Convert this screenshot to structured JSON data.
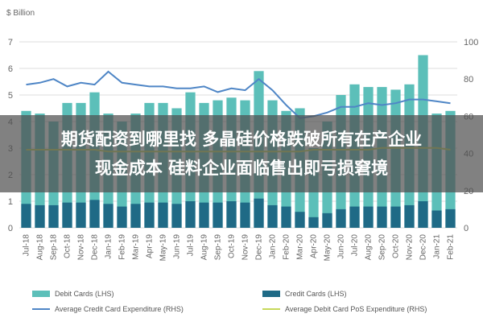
{
  "banner": {
    "line1": "期货配资到哪里找 多晶硅价格跌破所有在产企业",
    "line2": "现金成本 硅料企业面临售出即亏损窘境"
  },
  "colors": {
    "debit": "#5cbfb9",
    "credit": "#1f6a86",
    "avg_credit": "#4f86c6",
    "avg_debit": "#c7d85a",
    "grid": "#dddddd",
    "axis_text": "#666666"
  },
  "chart_data": {
    "type": "bar",
    "y_unit_label": "$ Billion",
    "ylim_left": [
      0,
      7
    ],
    "yticks_left": [
      0,
      1,
      2,
      3,
      4,
      5,
      6,
      7
    ],
    "ylim_right": [
      0,
      100
    ],
    "yticks_right": [
      0,
      20,
      40,
      60,
      80,
      100
    ],
    "grid": true,
    "legend_position": "bottom",
    "categories": [
      "Jul-18",
      "Aug-18",
      "Sep-18",
      "Oct-18",
      "Nov-18",
      "Dec-18",
      "Jan-19",
      "Feb-19",
      "Mar-19",
      "Apr-19",
      "May-19",
      "Jun-19",
      "Jul-19",
      "Aug-19",
      "Sep-19",
      "Oct-19",
      "Nov-19",
      "Dec-19",
      "Jan-20",
      "Feb-20",
      "Mar-20",
      "Apr-20",
      "May-20",
      "Jun-20",
      "Jul-20",
      "Aug-20",
      "Sep-20",
      "Oct-20",
      "Nov-20",
      "Dec-20",
      "Jan-21",
      "Feb-21"
    ],
    "series": [
      {
        "name": "Debit Cards (LHS)",
        "type": "bar",
        "axis": "left",
        "values": [
          4.4,
          4.3,
          4.0,
          4.7,
          4.7,
          5.1,
          4.3,
          4.0,
          4.3,
          4.7,
          4.7,
          4.5,
          5.1,
          4.7,
          4.8,
          4.9,
          4.8,
          5.9,
          4.8,
          4.4,
          4.5,
          3.0,
          4.0,
          5.0,
          5.4,
          5.3,
          5.3,
          5.2,
          5.4,
          6.5,
          4.3,
          4.4
        ]
      },
      {
        "name": "Credit Cards (LHS)",
        "type": "bar",
        "axis": "left",
        "values": [
          0.9,
          0.85,
          0.85,
          0.95,
          0.95,
          1.05,
          0.9,
          0.8,
          0.9,
          0.95,
          0.95,
          0.9,
          1.0,
          0.95,
          0.95,
          1.0,
          0.95,
          1.1,
          0.85,
          0.8,
          0.6,
          0.4,
          0.55,
          0.7,
          0.8,
          0.8,
          0.8,
          0.8,
          0.85,
          1.0,
          0.65,
          0.7
        ]
      },
      {
        "name": "Average Credit Card Expenditure (RHS)",
        "type": "line",
        "axis": "right",
        "values": [
          77,
          78,
          80,
          76,
          78,
          77,
          84,
          78,
          77,
          76,
          76,
          75,
          75,
          76,
          73,
          75,
          74,
          80,
          74,
          66,
          59,
          60,
          62,
          65,
          65,
          67,
          66,
          67,
          69,
          69,
          68,
          67
        ]
      },
      {
        "name": "Average Debit Card PoS Expenditure (RHS)",
        "type": "line",
        "axis": "right",
        "values": [
          42,
          42,
          42,
          42,
          42,
          42,
          41,
          41,
          41,
          41,
          41,
          41,
          41,
          41,
          41,
          41,
          41,
          41,
          41,
          41,
          41,
          42,
          42,
          42,
          42,
          42,
          43,
          43,
          43,
          43,
          43,
          42
        ]
      }
    ]
  }
}
